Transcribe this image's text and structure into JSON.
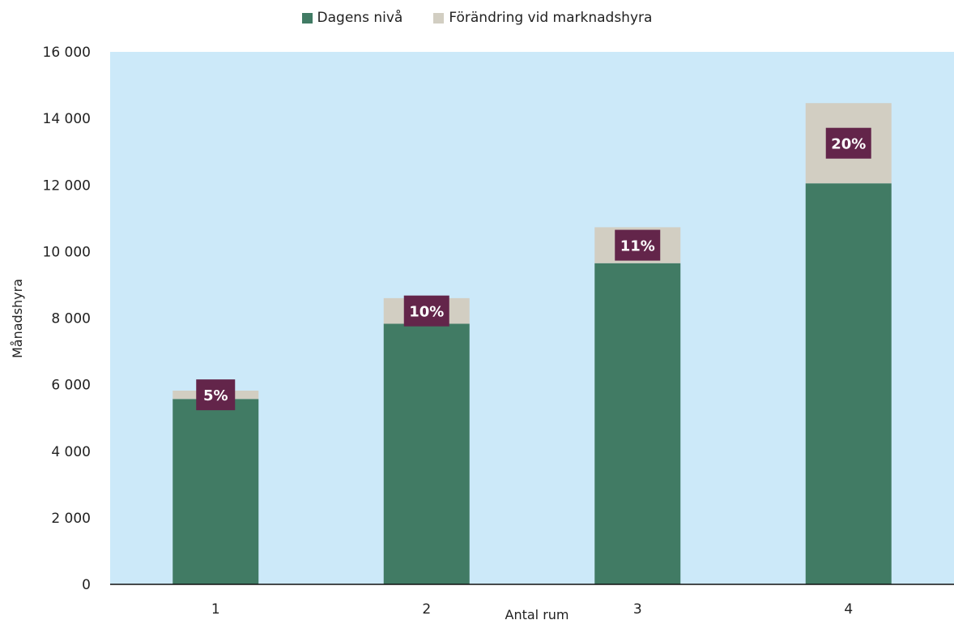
{
  "chart_data": {
    "type": "bar",
    "stacked": true,
    "categories": [
      "1",
      "2",
      "3",
      "4"
    ],
    "series": [
      {
        "name": "Dagens nivå",
        "color": "#417b64",
        "values": [
          5570,
          7830,
          9650,
          12050
        ]
      },
      {
        "name": "Förändring vid marknadshyra",
        "color": "#d2cec2",
        "values": [
          250,
          770,
          1080,
          2410
        ]
      }
    ],
    "data_labels": [
      "5%",
      "10%",
      "11%",
      "20%"
    ],
    "data_label_color": "#63254a",
    "ylabel": "Månadshyra",
    "xlabel": "Antal rum",
    "ylim": [
      0,
      16000
    ],
    "yticks": [
      0,
      2000,
      4000,
      6000,
      8000,
      10000,
      12000,
      14000,
      16000
    ],
    "ytick_labels": [
      "0",
      "2 000",
      "4 000",
      "6 000",
      "8 000",
      "10 000",
      "12 000",
      "14 000",
      "16 000"
    ],
    "plot_background": "#cce9f9",
    "grid": false,
    "legend_position": "top-center"
  }
}
